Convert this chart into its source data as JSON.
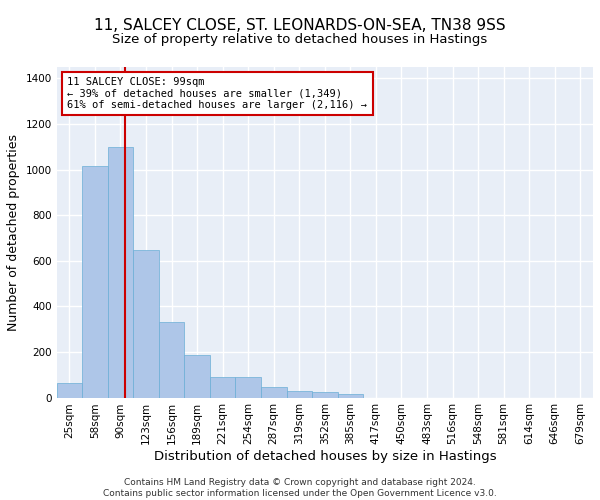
{
  "title_line1": "11, SALCEY CLOSE, ST. LEONARDS-ON-SEA, TN38 9SS",
  "title_line2": "Size of property relative to detached houses in Hastings",
  "xlabel": "Distribution of detached houses by size in Hastings",
  "ylabel": "Number of detached properties",
  "footnote": "Contains HM Land Registry data © Crown copyright and database right 2024.\nContains public sector information licensed under the Open Government Licence v3.0.",
  "bin_labels": [
    "25sqm",
    "58sqm",
    "90sqm",
    "123sqm",
    "156sqm",
    "189sqm",
    "221sqm",
    "254sqm",
    "287sqm",
    "319sqm",
    "352sqm",
    "385sqm",
    "417sqm",
    "450sqm",
    "483sqm",
    "516sqm",
    "548sqm",
    "581sqm",
    "614sqm",
    "646sqm",
    "679sqm"
  ],
  "bar_values": [
    62,
    1015,
    1100,
    648,
    330,
    188,
    88,
    88,
    45,
    27,
    22,
    15,
    0,
    0,
    0,
    0,
    0,
    0,
    0,
    0,
    0
  ],
  "bar_color": "#aec6e8",
  "bar_edge_color": "#6aaed6",
  "property_line_x": 2.18,
  "annotation_line0": "11 SALCEY CLOSE: 99sqm",
  "annotation_line1": "← 39% of detached houses are smaller (1,349)",
  "annotation_line2": "61% of semi-detached houses are larger (2,116) →",
  "annotation_box_color": "#ffffff",
  "annotation_box_edge": "#cc0000",
  "vline_color": "#cc0000",
  "ylim": [
    0,
    1450
  ],
  "yticks": [
    0,
    200,
    400,
    600,
    800,
    1000,
    1200,
    1400
  ],
  "background_color": "#e8eef7",
  "grid_color": "#ffffff",
  "title_fontsize": 11,
  "subtitle_fontsize": 9.5,
  "tick_fontsize": 7.5,
  "ylabel_fontsize": 9,
  "xlabel_fontsize": 9.5,
  "annotation_fontsize": 7.5,
  "footnote_fontsize": 6.5
}
